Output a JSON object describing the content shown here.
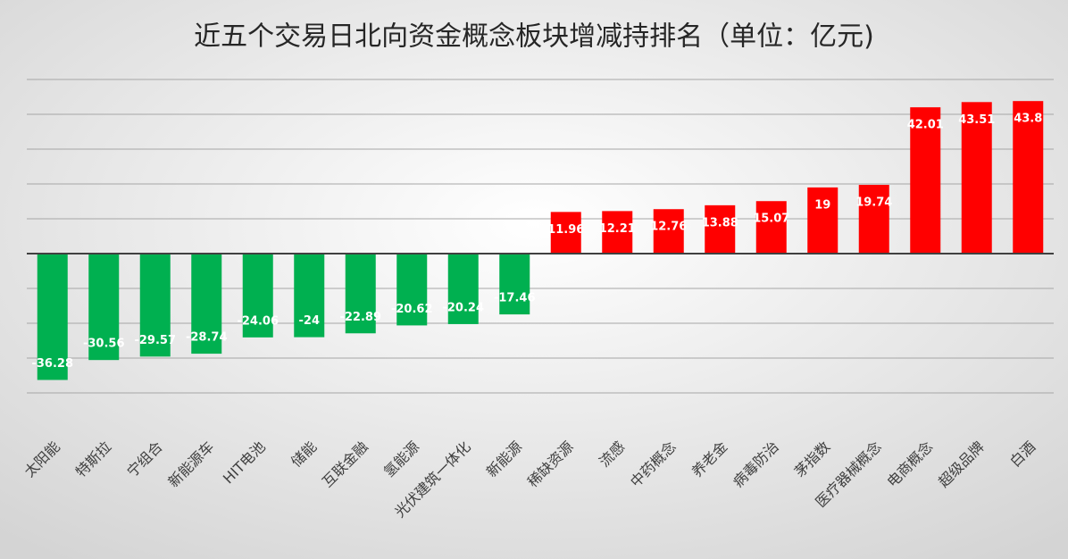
{
  "chart_data": {
    "type": "bar",
    "title": "近五个交易日北向资金概念板块增减持排名（单位：亿元)",
    "categories": [
      "太阳能",
      "特斯拉",
      "宁组合",
      "新能源车",
      "HIT电池",
      "储能",
      "互联金融",
      "氢能源",
      "光伏建筑一体化",
      "新能源",
      "稀缺资源",
      "流感",
      "中药概念",
      "养老金",
      "病毒防治",
      "茅指数",
      "医疗器械概念",
      "电商概念",
      "超级品牌",
      "白酒"
    ],
    "values": [
      -36.28,
      -30.56,
      -29.57,
      -28.74,
      -24.06,
      -24,
      -22.89,
      -20.62,
      -20.24,
      -17.46,
      11.96,
      12.21,
      12.76,
      13.88,
      15.07,
      19,
      19.74,
      42.01,
      43.51,
      43.8
    ],
    "color_positive": "#ff0000",
    "color_negative": "#00b050",
    "ylim": [
      -40,
      50
    ],
    "yticks": [
      -40,
      -30,
      -20,
      -10,
      0,
      10,
      20,
      30,
      40,
      50
    ],
    "grid": true
  }
}
